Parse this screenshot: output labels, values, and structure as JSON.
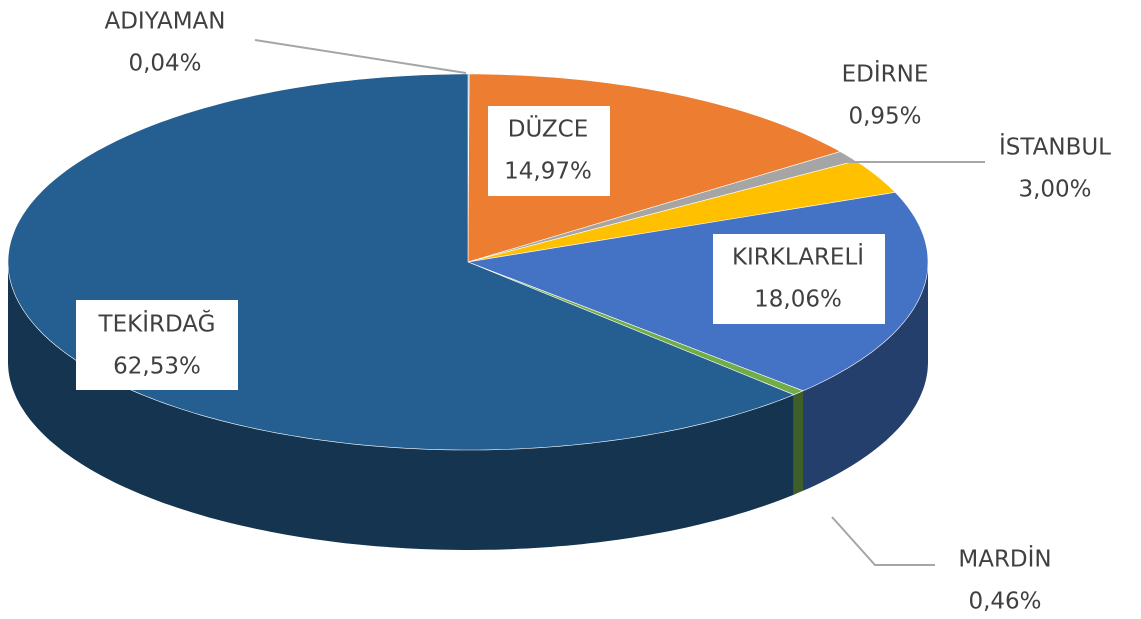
{
  "chart_data": {
    "type": "pie",
    "categories": [
      "ADIYAMAN",
      "DÜZCE",
      "EDİRNE",
      "İSTANBUL",
      "KIRKLARELİ",
      "MARDİN",
      "TEKİRDAĞ"
    ],
    "values": [
      0.04,
      14.97,
      0.95,
      3.0,
      18.06,
      0.46,
      62.53
    ],
    "value_labels": [
      "0,04%",
      "14,97%",
      "0,95%",
      "3,00%",
      "18,06%",
      "0,46%",
      "62,53%"
    ],
    "colors": [
      "#5b9bd5",
      "#ed7d31",
      "#a5a5a5",
      "#ffc000",
      "#4472c4",
      "#70ad47",
      "#255e91"
    ]
  }
}
